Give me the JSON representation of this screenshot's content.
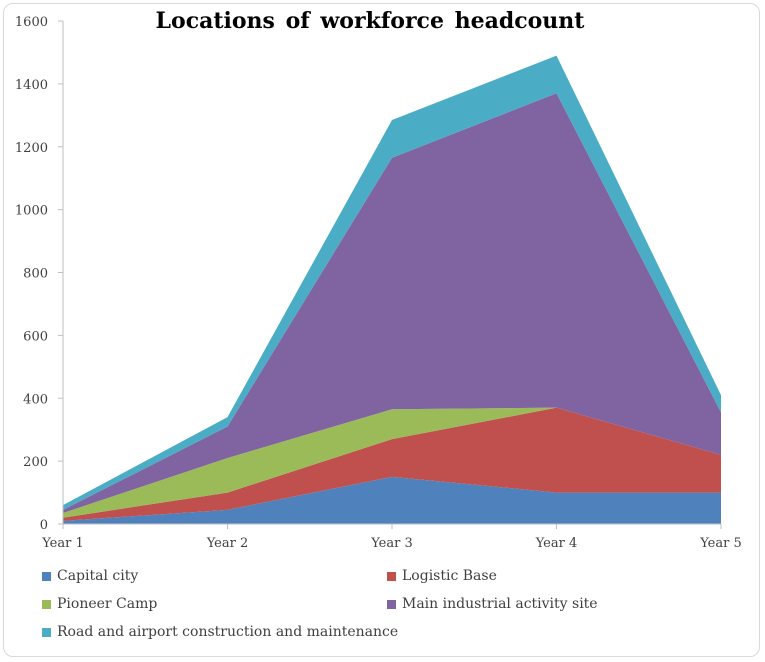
{
  "chart_data": {
    "type": "area",
    "stacked": true,
    "title": "Locations of workforce headcount",
    "categories": [
      "Year 1",
      "Year 2",
      "Year 3",
      "Year 4",
      "Year 5"
    ],
    "ylim": [
      0,
      1600
    ],
    "yticks": [
      0,
      200,
      400,
      600,
      800,
      1000,
      1200,
      1400,
      1600
    ],
    "grid": false,
    "legend_position": "bottom",
    "series": [
      {
        "name": "Capital city",
        "color": "#4f81bd",
        "values": [
          10,
          45,
          150,
          100,
          100
        ]
      },
      {
        "name": "Logistic Base",
        "color": "#c0504d",
        "values": [
          10,
          55,
          120,
          270,
          120
        ]
      },
      {
        "name": "Pioneer Camp",
        "color": "#9bbb59",
        "values": [
          15,
          110,
          95,
          0,
          0
        ]
      },
      {
        "name": "Main industrial activity site",
        "color": "#8064a2",
        "values": [
          10,
          100,
          800,
          1000,
          135
        ]
      },
      {
        "name": "Road and airport construction and maintenance",
        "color": "#4bacc6",
        "values": [
          15,
          30,
          120,
          120,
          55
        ]
      }
    ]
  }
}
